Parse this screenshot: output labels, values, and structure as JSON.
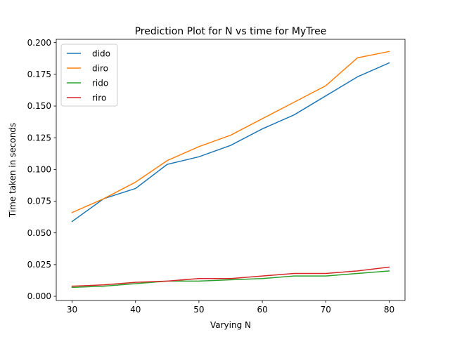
{
  "chart_data": {
    "type": "line",
    "title": "Prediction Plot for N vs time for MyTree",
    "xlabel": "Varying N",
    "ylabel": "Time taken in seconds",
    "x": [
      30,
      35,
      40,
      45,
      50,
      55,
      60,
      65,
      70,
      75,
      80
    ],
    "xlim": [
      27.5,
      82.5
    ],
    "ylim": [
      -0.0033,
      0.2026
    ],
    "xticks": [
      30,
      40,
      50,
      60,
      70,
      80
    ],
    "xtick_labels": [
      "30",
      "40",
      "50",
      "60",
      "70",
      "80"
    ],
    "yticks": [
      0.0,
      0.025,
      0.05,
      0.075,
      0.1,
      0.125,
      0.15,
      0.175,
      0.2
    ],
    "ytick_labels": [
      "0.000",
      "0.025",
      "0.050",
      "0.075",
      "0.100",
      "0.125",
      "0.150",
      "0.175",
      "0.200"
    ],
    "grid": false,
    "legend_position": "top-left",
    "series": [
      {
        "name": "dido",
        "color": "#1f77b4",
        "values": [
          0.059,
          0.077,
          0.085,
          0.104,
          0.11,
          0.119,
          0.132,
          0.143,
          0.158,
          0.173,
          0.184
        ]
      },
      {
        "name": "diro",
        "color": "#ff7f0e",
        "values": [
          0.066,
          0.077,
          0.09,
          0.107,
          0.118,
          0.127,
          0.14,
          0.153,
          0.166,
          0.188,
          0.193
        ]
      },
      {
        "name": "rido",
        "color": "#2ca02c",
        "values": [
          0.007,
          0.008,
          0.01,
          0.012,
          0.012,
          0.013,
          0.014,
          0.016,
          0.016,
          0.018,
          0.02
        ]
      },
      {
        "name": "riro",
        "color": "#d62728",
        "values": [
          0.008,
          0.009,
          0.011,
          0.012,
          0.014,
          0.014,
          0.016,
          0.018,
          0.018,
          0.02,
          0.023
        ]
      }
    ]
  }
}
